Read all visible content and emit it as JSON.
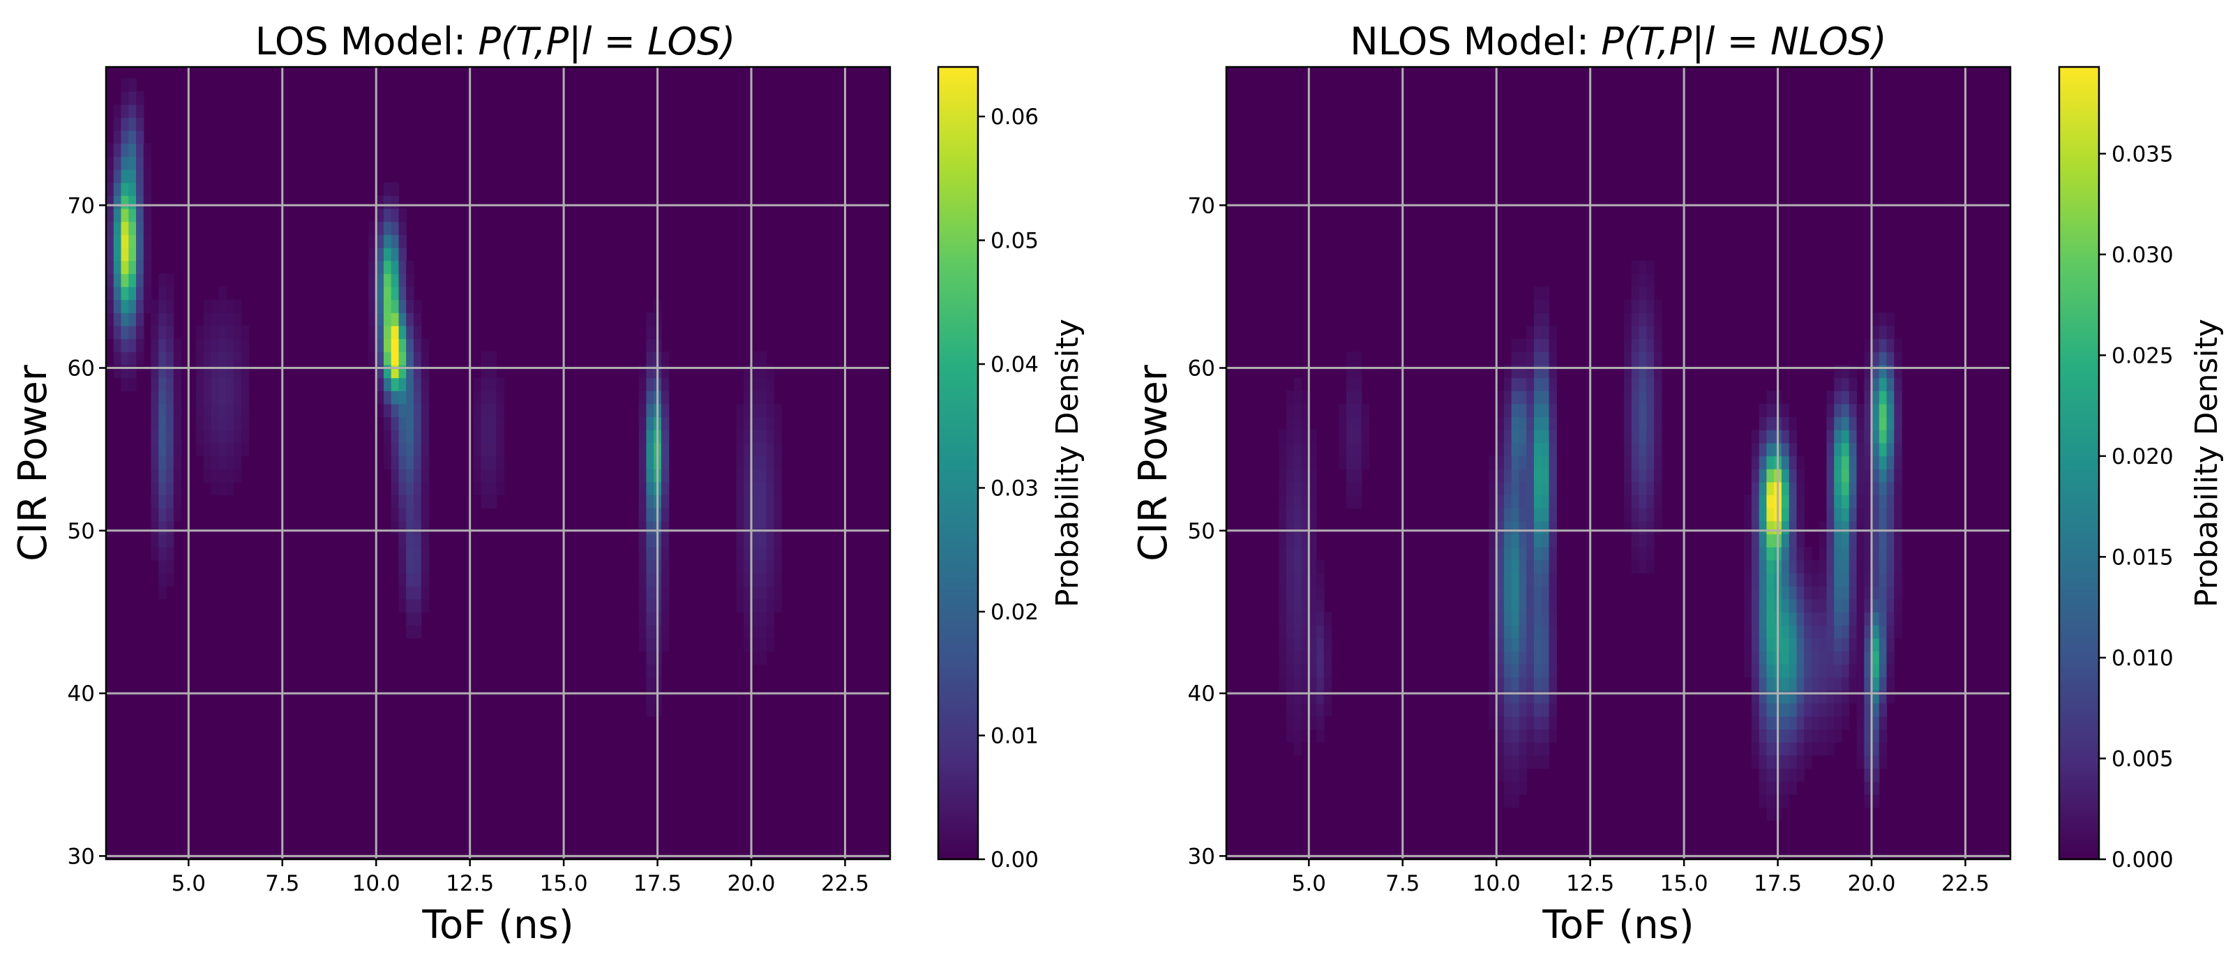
{
  "chart_data": [
    {
      "type": "heatmap",
      "id": "los",
      "title": "LOS Model: P(T, P|l = LOS)",
      "title_parts": {
        "prefix": "LOS Model: ",
        "math": "P(T,P|l = LOS)"
      },
      "xlabel": "ToF (ns)",
      "ylabel": "CIR Power",
      "xlim": [
        2.8,
        23.7
      ],
      "ylim": [
        29.8,
        78.5
      ],
      "xticks": [
        "5.0",
        "7.5",
        "10.0",
        "12.5",
        "15.0",
        "17.5",
        "20.0",
        "22.5"
      ],
      "yticks": [
        "30",
        "40",
        "50",
        "60",
        "70"
      ],
      "grid": true,
      "colormap": "viridis",
      "colorbar": {
        "label": "Probability Density",
        "range": [
          0,
          0.064
        ],
        "ticks": [
          "0.00",
          "0.01",
          "0.02",
          "0.03",
          "0.04",
          "0.05",
          "0.06"
        ]
      },
      "clusters": [
        {
          "tof": 3.35,
          "power": 67.5,
          "sd_tof": 0.22,
          "sd_power": 3.2,
          "peak": 0.062
        },
        {
          "tof": 3.5,
          "power": 73.5,
          "sd_tof": 0.18,
          "sd_power": 2.0,
          "peak": 0.012
        },
        {
          "tof": 4.35,
          "power": 56.0,
          "sd_tof": 0.18,
          "sd_power": 4.5,
          "peak": 0.017
        },
        {
          "tof": 5.9,
          "power": 58.5,
          "sd_tof": 0.45,
          "sd_power": 3.5,
          "peak": 0.006
        },
        {
          "tof": 10.35,
          "power": 65.0,
          "sd_tof": 0.2,
          "sd_power": 2.5,
          "peak": 0.048
        },
        {
          "tof": 10.5,
          "power": 60.8,
          "sd_tof": 0.2,
          "sd_power": 1.6,
          "peak": 0.06
        },
        {
          "tof": 10.85,
          "power": 56.5,
          "sd_tof": 0.25,
          "sd_power": 3.5,
          "peak": 0.02
        },
        {
          "tof": 11.0,
          "power": 48.0,
          "sd_tof": 0.18,
          "sd_power": 2.5,
          "peak": 0.01
        },
        {
          "tof": 13.0,
          "power": 56.0,
          "sd_tof": 0.25,
          "sd_power": 3.0,
          "peak": 0.005
        },
        {
          "tof": 17.45,
          "power": 55.0,
          "sd_tof": 0.15,
          "sd_power": 2.5,
          "peak": 0.034
        },
        {
          "tof": 17.4,
          "power": 51.0,
          "sd_tof": 0.18,
          "sd_power": 6.0,
          "peak": 0.014
        },
        {
          "tof": 20.2,
          "power": 51.5,
          "sd_tof": 0.35,
          "sd_power": 5.0,
          "peak": 0.008
        }
      ]
    },
    {
      "type": "heatmap",
      "id": "nlos",
      "title": "NLOS Model: P(T, P|l = NLOS)",
      "title_parts": {
        "prefix": "NLOS Model: ",
        "math": "P(T,P|l = NLOS)"
      },
      "xlabel": "ToF (ns)",
      "ylabel": "CIR Power",
      "xlim": [
        2.8,
        23.7
      ],
      "ylim": [
        29.8,
        78.5
      ],
      "xticks": [
        "5.0",
        "7.5",
        "10.0",
        "12.5",
        "15.0",
        "17.5",
        "20.0",
        "22.5"
      ],
      "yticks": [
        "30",
        "40",
        "50",
        "60",
        "70"
      ],
      "grid": true,
      "colormap": "viridis",
      "colorbar": {
        "label": "Probability Density",
        "range": [
          0,
          0.0393
        ],
        "ticks": [
          "0.000",
          "0.005",
          "0.010",
          "0.015",
          "0.020",
          "0.025",
          "0.030",
          "0.035"
        ]
      },
      "clusters": [
        {
          "tof": 4.7,
          "power": 48.0,
          "sd_tof": 0.3,
          "sd_power": 6.5,
          "peak": 0.004
        },
        {
          "tof": 5.3,
          "power": 42.0,
          "sd_tof": 0.15,
          "sd_power": 2.5,
          "peak": 0.004
        },
        {
          "tof": 6.2,
          "power": 56.0,
          "sd_tof": 0.2,
          "sd_power": 3.0,
          "peak": 0.003
        },
        {
          "tof": 10.45,
          "power": 46.5,
          "sd_tof": 0.28,
          "sd_power": 5.5,
          "peak": 0.017
        },
        {
          "tof": 10.6,
          "power": 56.5,
          "sd_tof": 0.15,
          "sd_power": 2.0,
          "peak": 0.012
        },
        {
          "tof": 11.2,
          "power": 53.5,
          "sd_tof": 0.18,
          "sd_power": 4.5,
          "peak": 0.024
        },
        {
          "tof": 11.2,
          "power": 42.0,
          "sd_tof": 0.2,
          "sd_power": 3.0,
          "peak": 0.01
        },
        {
          "tof": 13.9,
          "power": 57.0,
          "sd_tof": 0.25,
          "sd_power": 4.5,
          "peak": 0.009
        },
        {
          "tof": 17.45,
          "power": 52.0,
          "sd_tof": 0.25,
          "sd_power": 2.2,
          "peak": 0.037
        },
        {
          "tof": 17.3,
          "power": 45.0,
          "sd_tof": 0.25,
          "sd_power": 5.0,
          "peak": 0.02
        },
        {
          "tof": 17.8,
          "power": 42.5,
          "sd_tof": 0.25,
          "sd_power": 3.5,
          "peak": 0.016
        },
        {
          "tof": 18.5,
          "power": 42.0,
          "sd_tof": 0.45,
          "sd_power": 3.0,
          "peak": 0.006
        },
        {
          "tof": 19.25,
          "power": 54.0,
          "sd_tof": 0.2,
          "sd_power": 2.5,
          "peak": 0.025
        },
        {
          "tof": 19.2,
          "power": 47.5,
          "sd_tof": 0.2,
          "sd_power": 3.5,
          "peak": 0.015
        },
        {
          "tof": 20.3,
          "power": 57.0,
          "sd_tof": 0.2,
          "sd_power": 2.5,
          "peak": 0.027
        },
        {
          "tof": 20.1,
          "power": 42.0,
          "sd_tof": 0.15,
          "sd_power": 2.0,
          "peak": 0.022
        },
        {
          "tof": 20.0,
          "power": 37.0,
          "sd_tof": 0.15,
          "sd_power": 2.0,
          "peak": 0.008
        },
        {
          "tof": 20.3,
          "power": 49.0,
          "sd_tof": 0.22,
          "sd_power": 4.0,
          "peak": 0.01
        }
      ]
    }
  ]
}
